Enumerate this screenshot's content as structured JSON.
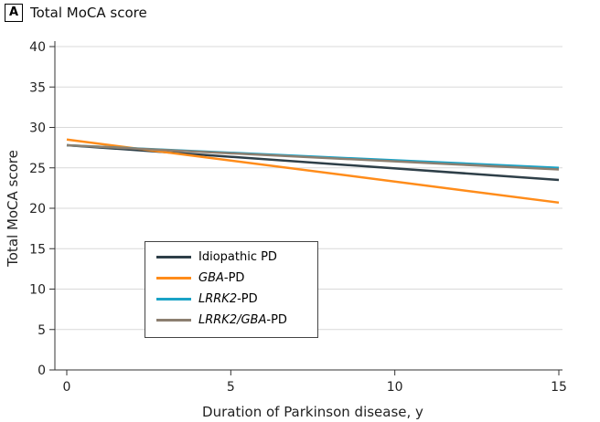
{
  "panel_label": "A",
  "chart_data": {
    "type": "line",
    "title": "Total MoCA score",
    "xlabel": "Duration of Parkinson disease, y",
    "ylabel": "Total MoCA score",
    "xlim": [
      0,
      15
    ],
    "ylim": [
      0,
      40
    ],
    "xticks": [
      0,
      5,
      10,
      15
    ],
    "yticks": [
      0,
      5,
      10,
      15,
      20,
      25,
      30,
      35,
      40
    ],
    "grid": "horizontal",
    "legend_placement": "bottom-left",
    "series": [
      {
        "name": "Idiopathic PD",
        "name_italic": "",
        "name_rest": "Idiopathic PD",
        "color": "#2e3f48",
        "x": [
          0,
          15
        ],
        "y": [
          27.8,
          23.5
        ]
      },
      {
        "name": "GBA-PD",
        "name_italic": "GBA",
        "name_rest": "-PD",
        "color": "#ff8c1a",
        "x": [
          0,
          15
        ],
        "y": [
          28.5,
          20.7
        ]
      },
      {
        "name": "LRRK2-PD",
        "name_italic": "LRRK2",
        "name_rest": "-PD",
        "color": "#1ba3c6",
        "x": [
          0,
          15
        ],
        "y": [
          27.8,
          25.0
        ]
      },
      {
        "name": "LRRK2/GBA-PD",
        "name_italic": "LRRK2/GBA",
        "name_rest": "-PD",
        "color": "#8c7f70",
        "x": [
          0,
          15
        ],
        "y": [
          27.8,
          24.8
        ]
      }
    ]
  }
}
